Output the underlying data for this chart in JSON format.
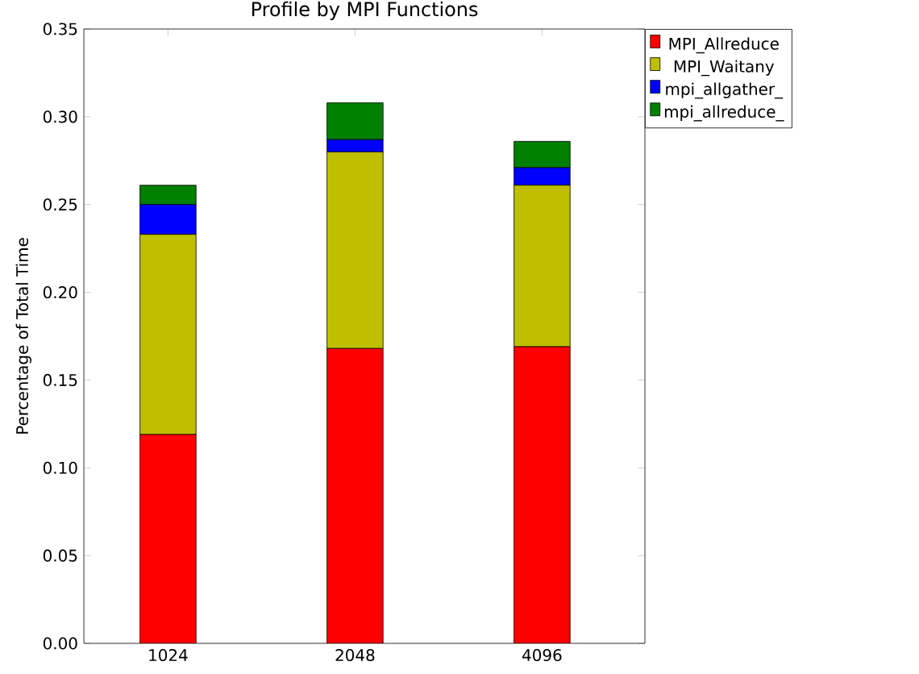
{
  "chart_data": {
    "type": "bar",
    "title": "Profile by MPI Functions",
    "ylabel": "Percentage of Total Time",
    "categories": [
      "1024",
      "2048",
      "4096"
    ],
    "stacked": true,
    "legend": "top right",
    "grid": false,
    "ylim": [
      0,
      0.35
    ],
    "yticks": [
      {
        "value": 0,
        "label": "0.00"
      },
      {
        "value": 0.05,
        "label": "0.05"
      },
      {
        "value": 0.1,
        "label": "0.10"
      },
      {
        "value": 0.15,
        "label": "0.15"
      },
      {
        "value": 0.2,
        "label": "0.20"
      },
      {
        "value": 0.25,
        "label": "0.25"
      },
      {
        "value": 0.3,
        "label": "0.30"
      },
      {
        "value": 0.35,
        "label": "0.35"
      }
    ],
    "series": [
      {
        "name": "MPI_Allreduce",
        "color": "#ff0000",
        "values": [
          0.119,
          0.168,
          0.169
        ]
      },
      {
        "name": "MPI_Waitany",
        "color": "#bfbf00",
        "values": [
          0.114,
          0.112,
          0.092
        ]
      },
      {
        "name": "mpi_allgather_",
        "color": "#0000ff",
        "values": [
          0.017,
          0.007,
          0.01
        ]
      },
      {
        "name": "mpi_allreduce_",
        "color": "#007f00",
        "values": [
          0.011,
          0.021,
          0.015
        ]
      }
    ]
  }
}
